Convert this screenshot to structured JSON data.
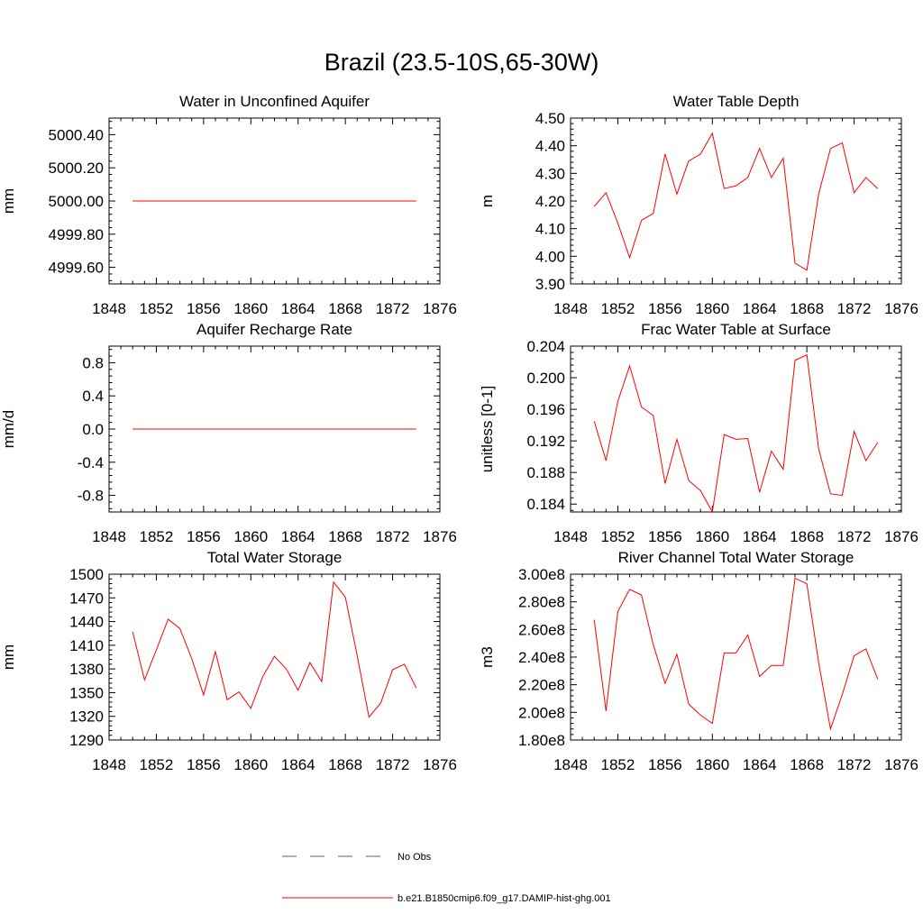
{
  "title": "Brazil (23.5-10S,65-30W)",
  "legend": {
    "items": [
      {
        "label": "No Obs",
        "color": "#5a5ac8",
        "dash": true
      },
      {
        "label": "b.e21.B1850cmip6.f09_g17.DAMIP-hist-ghg.001",
        "color": "#ff0000",
        "dash": false
      }
    ]
  },
  "chart_data": [
    {
      "type": "line",
      "title": "Water in Unconfined Aquifer",
      "ylabel": "mm",
      "xlim": [
        1848,
        1876
      ],
      "ylim": [
        4999.5,
        5000.5
      ],
      "xticks": [
        1848,
        1852,
        1856,
        1860,
        1864,
        1868,
        1872,
        1876
      ],
      "yticks": [
        4999.6,
        4999.8,
        5000.0,
        5000.2,
        5000.4
      ],
      "ytick_labels": [
        "4999.60",
        "4999.80",
        "5000.00",
        "5000.20",
        "5000.40"
      ],
      "x": [
        1850,
        1851,
        1852,
        1853,
        1854,
        1855,
        1856,
        1857,
        1858,
        1859,
        1860,
        1861,
        1862,
        1863,
        1864,
        1865,
        1866,
        1867,
        1868,
        1869,
        1870,
        1871,
        1872,
        1873,
        1874
      ],
      "series": [
        {
          "color": "#ff0000",
          "values": [
            5000,
            5000,
            5000,
            5000,
            5000,
            5000,
            5000,
            5000,
            5000,
            5000,
            5000,
            5000,
            5000,
            5000,
            5000,
            5000,
            5000,
            5000,
            5000,
            5000,
            5000,
            5000,
            5000,
            5000,
            5000
          ]
        }
      ]
    },
    {
      "type": "line",
      "title": "Water Table Depth",
      "ylabel": "m",
      "xlim": [
        1848,
        1876
      ],
      "ylim": [
        3.9,
        4.5
      ],
      "xticks": [
        1848,
        1852,
        1856,
        1860,
        1864,
        1868,
        1872,
        1876
      ],
      "yticks": [
        3.9,
        4.0,
        4.1,
        4.2,
        4.3,
        4.4,
        4.5
      ],
      "ytick_labels": [
        "3.90",
        "4.00",
        "4.10",
        "4.20",
        "4.30",
        "4.40",
        "4.50"
      ],
      "x": [
        1850,
        1851,
        1852,
        1853,
        1854,
        1855,
        1856,
        1857,
        1858,
        1859,
        1860,
        1861,
        1862,
        1863,
        1864,
        1865,
        1866,
        1867,
        1868,
        1869,
        1870,
        1871,
        1872,
        1873,
        1874
      ],
      "series": [
        {
          "color": "#ff0000",
          "values": [
            4.18,
            4.23,
            4.12,
            3.995,
            4.13,
            4.155,
            4.37,
            4.225,
            4.345,
            4.37,
            4.445,
            4.245,
            4.255,
            4.285,
            4.39,
            4.285,
            4.355,
            3.975,
            3.95,
            4.225,
            4.39,
            4.41,
            4.23,
            4.285,
            4.245
          ]
        }
      ]
    },
    {
      "type": "line",
      "title": "Aquifer Recharge Rate",
      "ylabel": "mm/d",
      "xlim": [
        1848,
        1876
      ],
      "ylim": [
        -1.0,
        1.0
      ],
      "xticks": [
        1848,
        1852,
        1856,
        1860,
        1864,
        1868,
        1872,
        1876
      ],
      "yticks": [
        -0.8,
        -0.4,
        0.0,
        0.4,
        0.8
      ],
      "ytick_labels": [
        "-0.8",
        "-0.4",
        "0.0",
        "0.4",
        "0.8"
      ],
      "x": [
        1850,
        1851,
        1852,
        1853,
        1854,
        1855,
        1856,
        1857,
        1858,
        1859,
        1860,
        1861,
        1862,
        1863,
        1864,
        1865,
        1866,
        1867,
        1868,
        1869,
        1870,
        1871,
        1872,
        1873,
        1874
      ],
      "series": [
        {
          "color": "#ff0000",
          "values": [
            0,
            0,
            0,
            0,
            0,
            0,
            0,
            0,
            0,
            0,
            0,
            0,
            0,
            0,
            0,
            0,
            0,
            0,
            0,
            0,
            0,
            0,
            0,
            0,
            0
          ]
        }
      ]
    },
    {
      "type": "line",
      "title": "Frac Water Table at Surface",
      "ylabel": "unitless [0-1]",
      "xlim": [
        1848,
        1876
      ],
      "ylim": [
        0.183,
        0.204
      ],
      "xticks": [
        1848,
        1852,
        1856,
        1860,
        1864,
        1868,
        1872,
        1876
      ],
      "yticks": [
        0.184,
        0.188,
        0.192,
        0.196,
        0.2,
        0.204
      ],
      "ytick_labels": [
        "0.184",
        "0.188",
        "0.192",
        "0.196",
        "0.200",
        "0.204"
      ],
      "x": [
        1850,
        1851,
        1852,
        1853,
        1854,
        1855,
        1856,
        1857,
        1858,
        1859,
        1860,
        1861,
        1862,
        1863,
        1864,
        1865,
        1866,
        1867,
        1868,
        1869,
        1870,
        1871,
        1872,
        1873,
        1874
      ],
      "series": [
        {
          "color": "#ff0000",
          "values": [
            0.1945,
            0.1895,
            0.197,
            0.2015,
            0.1963,
            0.1952,
            0.1866,
            0.1922,
            0.187,
            0.1857,
            0.183,
            0.1928,
            0.1922,
            0.1923,
            0.1855,
            0.1907,
            0.1884,
            0.2022,
            0.2029,
            0.191,
            0.1853,
            0.1851,
            0.1932,
            0.1895,
            0.1918
          ]
        }
      ]
    },
    {
      "type": "line",
      "title": "Total Water Storage",
      "ylabel": "mm",
      "xlim": [
        1848,
        1876
      ],
      "ylim": [
        1290,
        1500
      ],
      "xticks": [
        1848,
        1852,
        1856,
        1860,
        1864,
        1868,
        1872,
        1876
      ],
      "yticks": [
        1290,
        1320,
        1350,
        1380,
        1410,
        1440,
        1470,
        1500
      ],
      "ytick_labels": [
        "1290",
        "1320",
        "1350",
        "1380",
        "1410",
        "1440",
        "1470",
        "1500"
      ],
      "x": [
        1850,
        1851,
        1852,
        1853,
        1854,
        1855,
        1856,
        1857,
        1858,
        1859,
        1860,
        1861,
        1862,
        1863,
        1864,
        1865,
        1866,
        1867,
        1868,
        1869,
        1870,
        1871,
        1872,
        1873,
        1874
      ],
      "series": [
        {
          "color": "#ff0000",
          "values": [
            1427,
            1366,
            1404,
            1443,
            1431,
            1393,
            1347,
            1402,
            1341,
            1351,
            1330,
            1370,
            1396,
            1380,
            1353,
            1388,
            1364,
            1490,
            1471,
            1397,
            1319,
            1337,
            1379,
            1386,
            1356
          ]
        }
      ]
    },
    {
      "type": "line",
      "title": "River Channel Total Water Storage",
      "ylabel": "m3",
      "xlim": [
        1848,
        1876
      ],
      "ylim": [
        180000000,
        300000000
      ],
      "xticks": [
        1848,
        1852,
        1856,
        1860,
        1864,
        1868,
        1872,
        1876
      ],
      "yticks": [
        180000000,
        200000000,
        220000000,
        240000000,
        260000000,
        280000000,
        300000000
      ],
      "ytick_labels": [
        "1.80e8",
        "2.00e8",
        "2.20e8",
        "2.40e8",
        "2.60e8",
        "2.80e8",
        "3.00e8"
      ],
      "x": [
        1850,
        1851,
        1852,
        1853,
        1854,
        1855,
        1856,
        1857,
        1858,
        1859,
        1860,
        1861,
        1862,
        1863,
        1864,
        1865,
        1866,
        1867,
        1868,
        1869,
        1870,
        1871,
        1872,
        1873,
        1874
      ],
      "series": [
        {
          "color": "#ff0000",
          "values": [
            267000000,
            201000000,
            273000000,
            289000000,
            285000000,
            249000000,
            221000000,
            242000000,
            206000000,
            198000000,
            192000000,
            243000000,
            243000000,
            256000000,
            226000000,
            234000000,
            234000000,
            297000000,
            293000000,
            236000000,
            188000000,
            213000000,
            241000000,
            246000000,
            224000000
          ]
        }
      ]
    }
  ]
}
